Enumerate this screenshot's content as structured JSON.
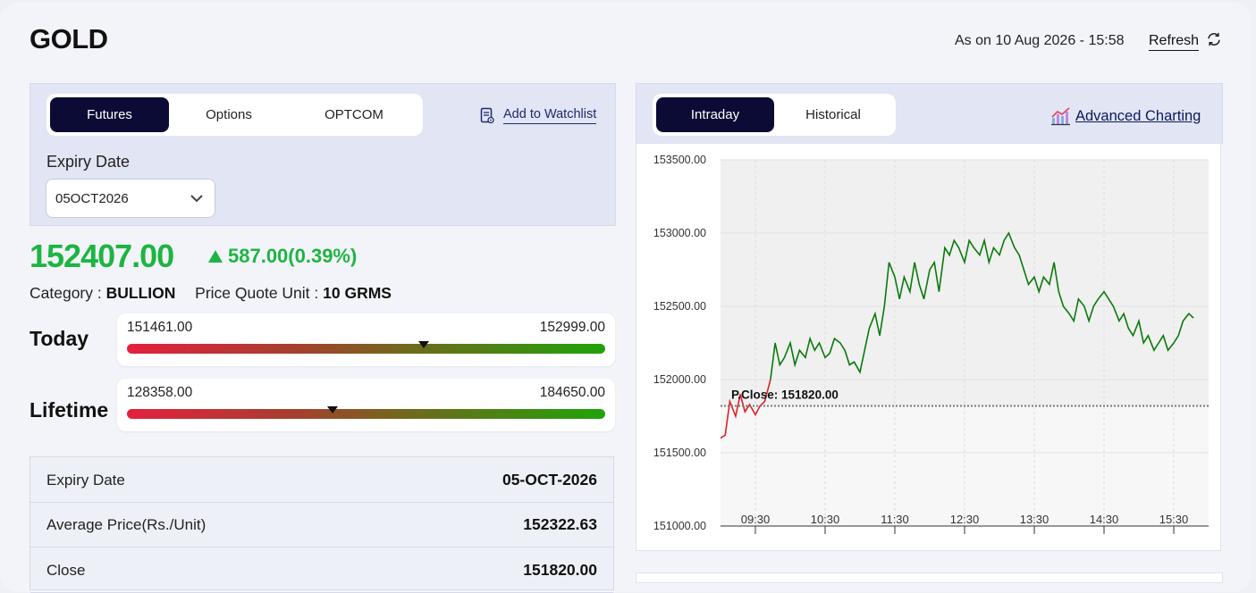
{
  "header": {
    "title": "GOLD",
    "as_on": "As on 10 Aug 2026 - 15:58",
    "refresh_label": "Refresh"
  },
  "contract_tabs": [
    {
      "label": "Futures",
      "active": true
    },
    {
      "label": "Options",
      "active": false
    },
    {
      "label": "OPTCOM",
      "active": false
    }
  ],
  "watchlist_label": "Add to Watchlist",
  "expiry": {
    "label": "Expiry Date",
    "selected": "05OCT2026"
  },
  "quote": {
    "price": "152407.00",
    "change": "587.00(0.39%)",
    "direction": "up",
    "category_label": "Category :",
    "category_value": "BULLION",
    "unit_label": "Price Quote Unit :",
    "unit_value": "10 GRMS"
  },
  "ranges": {
    "today": {
      "label": "Today",
      "low": "151461.00",
      "high": "152999.00",
      "marker_fraction": 0.62
    },
    "lifetime": {
      "label": "Lifetime",
      "low": "128358.00",
      "high": "184650.00",
      "marker_fraction": 0.43
    }
  },
  "details": [
    {
      "label": "Expiry Date",
      "value": "05-OCT-2026"
    },
    {
      "label": "Average Price(Rs./Unit)",
      "value": "152322.63"
    },
    {
      "label": "Close",
      "value": "151820.00"
    }
  ],
  "chart_tabs": [
    {
      "label": "Intraday",
      "active": true
    },
    {
      "label": "Historical",
      "active": false
    }
  ],
  "advanced_charting_label": "Advanced Charting",
  "colors": {
    "accent_dark": "#0b0b35",
    "up_green": "#1db542",
    "line_green": "#0a7a0a",
    "line_red": "#e0202a"
  },
  "chart_data": {
    "type": "line",
    "title": "",
    "xlabel": "",
    "ylabel": "",
    "ylim": [
      151000,
      153500
    ],
    "y_ticks": [
      "151000.00",
      "151500.00",
      "152000.00",
      "152500.00",
      "153000.00",
      "153500.00"
    ],
    "x_ticks": [
      "09:30",
      "10:30",
      "11:30",
      "12:30",
      "13:30",
      "14:30",
      "15:30"
    ],
    "previous_close": 151820,
    "previous_close_label": "P.Close: 151820.00",
    "grid": true,
    "series": [
      {
        "x": [
          "09:00",
          "09:04",
          "09:08",
          "09:13",
          "09:17",
          "09:21",
          "09:25",
          "09:30",
          "09:34",
          "09:38",
          "09:43",
          "09:47",
          "09:51",
          "09:55",
          "10:00",
          "10:04",
          "10:08",
          "10:13",
          "10:17",
          "10:21",
          "10:25",
          "10:30",
          "10:34",
          "10:38",
          "10:43",
          "10:47",
          "10:51",
          "10:55",
          "11:00",
          "11:04",
          "11:08",
          "11:13",
          "11:17",
          "11:21",
          "11:25",
          "11:30",
          "11:34",
          "11:38",
          "11:43",
          "11:47",
          "11:51",
          "11:55",
          "12:00",
          "12:04",
          "12:08",
          "12:13",
          "12:17",
          "12:21",
          "12:25",
          "12:30",
          "12:34",
          "12:38",
          "12:43",
          "12:47",
          "12:51",
          "12:55",
          "13:00",
          "13:04",
          "13:08",
          "13:13",
          "13:17",
          "13:21",
          "13:25",
          "13:30",
          "13:34",
          "13:38",
          "13:43",
          "13:47",
          "13:51",
          "13:55",
          "14:00",
          "14:04",
          "14:08",
          "14:13",
          "14:17",
          "14:21",
          "14:25",
          "14:30",
          "14:34",
          "14:38",
          "14:43",
          "14:47",
          "14:51",
          "14:55",
          "15:00",
          "15:04",
          "15:08",
          "15:13",
          "15:17",
          "15:21",
          "15:25",
          "15:30",
          "15:34",
          "15:38",
          "15:43",
          "15:47"
        ],
        "y": [
          151600,
          151620,
          151850,
          151750,
          151900,
          151780,
          151830,
          151760,
          151820,
          151850,
          152000,
          152250,
          152100,
          152150,
          152250,
          152100,
          152200,
          152150,
          152280,
          152200,
          152250,
          152150,
          152180,
          152280,
          152250,
          152200,
          152100,
          152120,
          152050,
          152200,
          152350,
          152450,
          152300,
          152500,
          152800,
          152700,
          152550,
          152700,
          152600,
          152800,
          152650,
          152550,
          152750,
          152800,
          152600,
          152900,
          152850,
          152950,
          152900,
          152800,
          152950,
          152900,
          152850,
          152950,
          152800,
          152900,
          152850,
          152950,
          153000,
          152900,
          152850,
          152750,
          152650,
          152700,
          152600,
          152700,
          152650,
          152800,
          152600,
          152500,
          152450,
          152400,
          152550,
          152500,
          152400,
          152500,
          152550,
          152600,
          152550,
          152500,
          152400,
          152450,
          152350,
          152300,
          152400,
          152250,
          152300,
          152200,
          152250,
          152300,
          152200,
          152250,
          152300,
          152400,
          152450,
          152420
        ]
      }
    ]
  }
}
